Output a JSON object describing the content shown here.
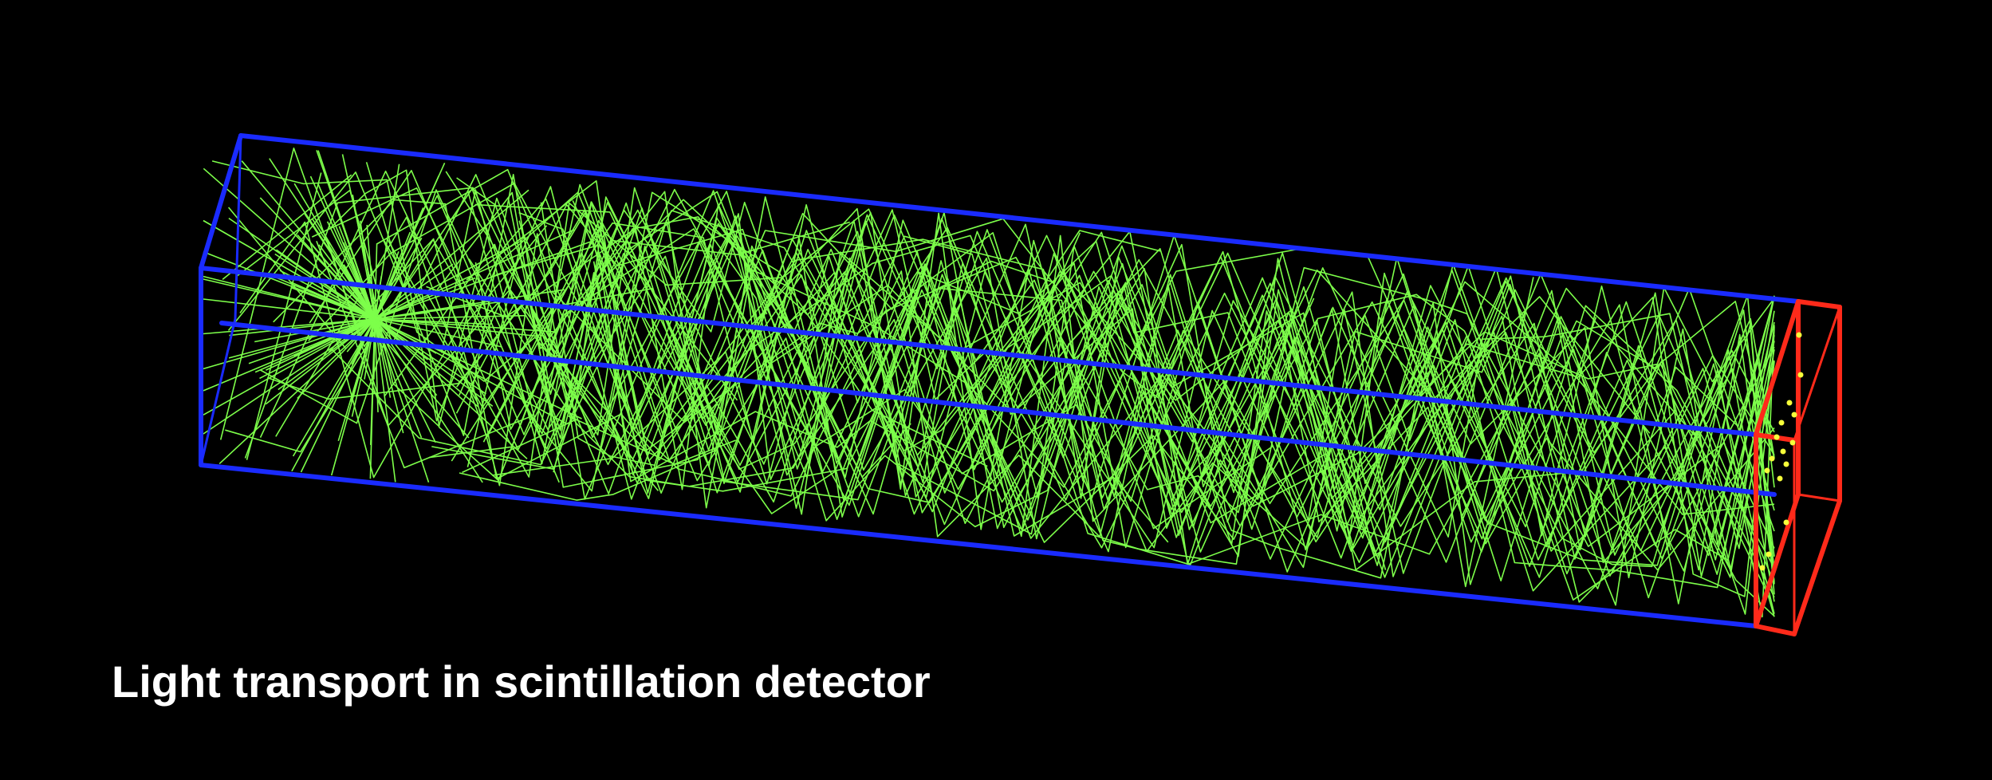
{
  "caption": "Light transport in scintillation detector",
  "colors": {
    "background": "#000000",
    "scintillator_outline": "#1a2bff",
    "photodetector_outline": "#ff2a1a",
    "photon_tracks": "#7dff4a",
    "hits": "#f6ff3a",
    "caption_text": "#ffffff"
  }
}
